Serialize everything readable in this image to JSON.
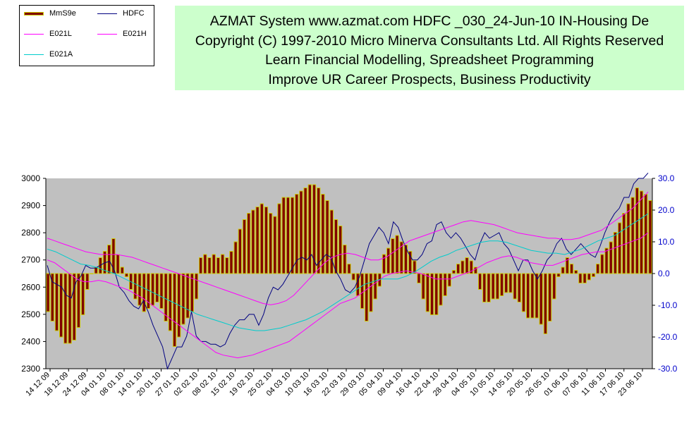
{
  "banner": {
    "line1": "AZMAT System  www.azmat.com HDFC      _030_24-Jun-10 IN-Housing De",
    "line2": "Copyright (C) 1997-2010 Micro Minerva Consultants Ltd. All Rights Reserved",
    "line3": "Learn Financial Modelling, Spreadsheet Programming",
    "line4": "Improve UR Career Prospects, Business Productivity"
  },
  "legend": [
    {
      "label": "MmS9e",
      "color": "#800000",
      "style": "bar"
    },
    {
      "label": "HDFC",
      "color": "#000080",
      "style": "line"
    },
    {
      "label": "E021L",
      "color": "#ff00ff",
      "style": "line"
    },
    {
      "label": "E021H",
      "color": "#ff00ff",
      "style": "line"
    },
    {
      "label": "E021A",
      "color": "#00cccc",
      "style": "line"
    }
  ],
  "chart_data": {
    "type": "line",
    "title": "",
    "x_labels": [
      "14 12 09",
      "18 12 09",
      "24 12 09",
      "04 01 10",
      "08 01 10",
      "14 01 10",
      "20 01 10",
      "27 01 10",
      "02 02 10",
      "08 02 10",
      "15 02 10",
      "19 02 10",
      "25 02 10",
      "04 03 10",
      "10 03 10",
      "16 03 10",
      "22 03 10",
      "29 03 10",
      "05 04 10",
      "09 04 10",
      "16 04 10",
      "22 04 10",
      "28 04 10",
      "04 05 10",
      "10 05 10",
      "14 05 10",
      "20 05 10",
      "26 05 10",
      "01 06 10",
      "07 06 10",
      "11 06 10",
      "17 06 10",
      "23 06 10"
    ],
    "y_left": {
      "min": 2300,
      "max": 3000,
      "ticks": [
        2300,
        2400,
        2500,
        2600,
        2700,
        2800,
        2900,
        3000
      ]
    },
    "y_right": {
      "min": -30,
      "max": 30,
      "ticks": [
        -30,
        -20,
        -10,
        0,
        10,
        20,
        30
      ],
      "labels": [
        "-30.0",
        "-20.0",
        "-10.0",
        "0.0",
        "10.0",
        "20.0",
        "30.0"
      ]
    },
    "plot_background": "#c0c0c0",
    "series": [
      {
        "name": "MmS9e",
        "axis": "right",
        "type": "bar",
        "color": "#800000",
        "edge": "#cccc00",
        "values": [
          -12,
          -15,
          -18,
          -20,
          -22,
          -22,
          -21,
          -17,
          -13,
          -5,
          0,
          2,
          5,
          7,
          9,
          11,
          6,
          2,
          -1,
          -5,
          -8,
          -10,
          -12,
          -11,
          -10,
          -9,
          -11,
          -15,
          -18,
          -23,
          -20,
          -16,
          -14,
          -12,
          -8,
          5,
          6,
          5,
          6,
          5,
          6,
          5,
          7,
          10,
          14,
          17,
          19,
          20,
          21,
          22,
          21,
          19,
          18,
          22,
          24,
          24,
          24,
          25,
          26,
          27,
          28,
          28,
          27,
          25,
          23,
          20,
          17,
          15,
          9,
          3,
          -2,
          -7,
          -11,
          -15,
          -12,
          -8,
          -4,
          6,
          8,
          11,
          12,
          10,
          9,
          7,
          4,
          -3,
          -8,
          -12,
          -13,
          -13,
          -10,
          -7,
          -4,
          1,
          3,
          4,
          5,
          4,
          2,
          -5,
          -9,
          -9,
          -8,
          -8,
          -7,
          -6,
          -6,
          -8,
          -9,
          -12,
          -14,
          -14,
          -14,
          -16,
          -19,
          -15,
          -8,
          -1,
          2,
          5,
          3,
          1,
          -3,
          -3,
          -2,
          -1,
          3,
          6,
          8,
          10,
          13,
          16,
          19,
          22,
          24,
          27,
          26,
          25,
          23
        ]
      },
      {
        "name": "HDFC",
        "axis": "left",
        "type": "line",
        "color": "#000080",
        "values": [
          2680,
          2620,
          2610,
          2600,
          2570,
          2560,
          2620,
          2640,
          2680,
          2670,
          2670,
          2680,
          2690,
          2695,
          2660,
          2600,
          2580,
          2550,
          2530,
          2520,
          2550,
          2510,
          2460,
          2420,
          2380,
          2300,
          2340,
          2380,
          2380,
          2420,
          2510,
          2420,
          2400,
          2400,
          2390,
          2390,
          2380,
          2390,
          2430,
          2460,
          2480,
          2480,
          2500,
          2500,
          2460,
          2500,
          2560,
          2600,
          2590,
          2610,
          2640,
          2670,
          2700,
          2710,
          2700,
          2720,
          2680,
          2700,
          2720,
          2710,
          2660,
          2630,
          2590,
          2580,
          2600,
          2640,
          2700,
          2760,
          2790,
          2820,
          2800,
          2760,
          2840,
          2820,
          2770,
          2730,
          2700,
          2700,
          2720,
          2760,
          2770,
          2830,
          2840,
          2800,
          2780,
          2800,
          2780,
          2750,
          2720,
          2700,
          2760,
          2800,
          2780,
          2790,
          2800,
          2760,
          2740,
          2700,
          2660,
          2700,
          2700,
          2660,
          2630,
          2660,
          2700,
          2720,
          2760,
          2780,
          2740,
          2720,
          2740,
          2760,
          2740,
          2720,
          2710,
          2750,
          2800,
          2840,
          2870,
          2890,
          2930,
          2930,
          2980,
          3000,
          3000,
          3020
        ]
      },
      {
        "name": "E021L",
        "axis": "left",
        "type": "line",
        "color": "#ff00ff",
        "values": [
          2700,
          2690,
          2670,
          2650,
          2630,
          2620,
          2620,
          2625,
          2620,
          2610,
          2600,
          2590,
          2575,
          2560,
          2540,
          2520,
          2500,
          2480,
          2460,
          2440,
          2420,
          2400,
          2380,
          2360,
          2350,
          2345,
          2340,
          2345,
          2350,
          2360,
          2370,
          2380,
          2390,
          2400,
          2420,
          2440,
          2460,
          2480,
          2500,
          2520,
          2540,
          2550,
          2560,
          2580,
          2600,
          2620,
          2640,
          2650,
          2655,
          2660,
          2655,
          2650,
          2640,
          2630,
          2630,
          2630,
          2640,
          2650,
          2660,
          2675,
          2690,
          2700,
          2710,
          2715,
          2710,
          2700,
          2690,
          2685,
          2680,
          2680,
          2690,
          2700,
          2710,
          2720,
          2725,
          2730,
          2730,
          2740,
          2750,
          2760,
          2770,
          2780,
          2800
        ]
      },
      {
        "name": "E021H",
        "axis": "left",
        "type": "line",
        "color": "#ff00ff",
        "values": [
          2780,
          2770,
          2760,
          2750,
          2740,
          2730,
          2725,
          2720,
          2720,
          2720,
          2715,
          2710,
          2700,
          2690,
          2680,
          2670,
          2660,
          2650,
          2640,
          2630,
          2620,
          2610,
          2600,
          2590,
          2580,
          2570,
          2560,
          2550,
          2540,
          2535,
          2540,
          2550,
          2570,
          2600,
          2630,
          2660,
          2690,
          2710,
          2720,
          2725,
          2720,
          2710,
          2700,
          2700,
          2710,
          2730,
          2750,
          2770,
          2780,
          2790,
          2800,
          2810,
          2820,
          2830,
          2840,
          2845,
          2840,
          2835,
          2830,
          2820,
          2810,
          2800,
          2795,
          2790,
          2785,
          2780,
          2780,
          2775,
          2775,
          2780,
          2790,
          2800,
          2810,
          2830,
          2850,
          2870,
          2890,
          2920,
          2950
        ]
      },
      {
        "name": "E021A",
        "axis": "left",
        "type": "line",
        "color": "#00cccc",
        "values": [
          2740,
          2730,
          2715,
          2700,
          2685,
          2680,
          2672,
          2660,
          2650,
          2635,
          2620,
          2605,
          2590,
          2575,
          2560,
          2545,
          2530,
          2515,
          2500,
          2490,
          2480,
          2470,
          2460,
          2450,
          2445,
          2440,
          2440,
          2445,
          2450,
          2460,
          2470,
          2480,
          2495,
          2510,
          2530,
          2550,
          2570,
          2590,
          2610,
          2620,
          2630,
          2630,
          2630,
          2640,
          2655,
          2675,
          2695,
          2710,
          2720,
          2735,
          2745,
          2755,
          2765,
          2770,
          2770,
          2765,
          2755,
          2745,
          2735,
          2730,
          2725,
          2725,
          2720,
          2730,
          2740,
          2755,
          2770,
          2780,
          2790,
          2810,
          2830,
          2850,
          2870
        ]
      }
    ]
  }
}
